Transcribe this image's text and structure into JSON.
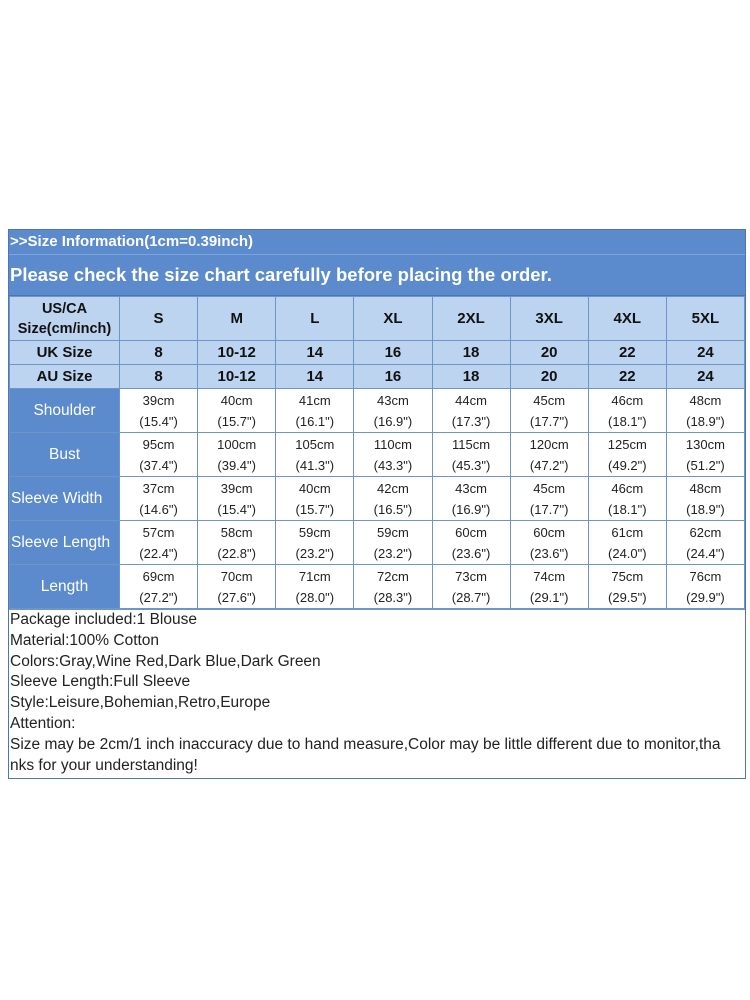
{
  "banner": {
    "line1": ">>Size Information(1cm=0.39inch)",
    "line2": "Please check the size chart carefully before placing the order."
  },
  "colors": {
    "banner_blue": "#5b8bcc",
    "header_light_blue": "#bcd4ef",
    "border_blue": "#6f95c8"
  },
  "table": {
    "us_label_line1": "US/CA",
    "us_label_line2": "Size(cm/inch)",
    "sizes": [
      "S",
      "M",
      "L",
      "XL",
      "2XL",
      "3XL",
      "4XL",
      "5XL"
    ],
    "uk_label": "UK Size",
    "uk_sizes": [
      "8",
      "10-12",
      "14",
      "16",
      "18",
      "20",
      "22",
      "24"
    ],
    "au_label": "AU Size",
    "au_sizes": [
      "8",
      "10-12",
      "14",
      "16",
      "18",
      "20",
      "22",
      "24"
    ],
    "rows": [
      {
        "label": "Shoulder",
        "cm": [
          "39cm",
          "40cm",
          "41cm",
          "43cm",
          "44cm",
          "45cm",
          "46cm",
          "48cm"
        ],
        "inch": [
          "(15.4\")",
          "(15.7\")",
          "(16.1\")",
          "(16.9\")",
          "(17.3\")",
          "(17.7\")",
          "(18.1\")",
          "(18.9\")"
        ]
      },
      {
        "label": "Bust",
        "cm": [
          "95cm",
          "100cm",
          "105cm",
          "110cm",
          "115cm",
          "120cm",
          "125cm",
          "130cm"
        ],
        "inch": [
          "(37.4\")",
          "(39.4\")",
          "(41.3\")",
          "(43.3\")",
          "(45.3\")",
          "(47.2\")",
          "(49.2\")",
          "(51.2\")"
        ]
      },
      {
        "label": "Sleeve Width",
        "cm": [
          "37cm",
          "39cm",
          "40cm",
          "42cm",
          "43cm",
          "45cm",
          "46cm",
          "48cm"
        ],
        "inch": [
          "(14.6\")",
          "(15.4\")",
          "(15.7\")",
          "(16.5\")",
          "(16.9\")",
          "(17.7\")",
          "(18.1\")",
          "(18.9\")"
        ]
      },
      {
        "label": "Sleeve Length",
        "cm": [
          "57cm",
          "58cm",
          "59cm",
          "59cm",
          "60cm",
          "60cm",
          "61cm",
          "62cm"
        ],
        "inch": [
          "(22.4\")",
          "(22.8\")",
          "(23.2\")",
          "(23.2\")",
          "(23.6\")",
          "(23.6\")",
          "(24.0\")",
          "(24.4\")"
        ]
      },
      {
        "label": "Length",
        "cm": [
          "69cm",
          "70cm",
          "71cm",
          "72cm",
          "73cm",
          "74cm",
          "75cm",
          "76cm"
        ],
        "inch": [
          "(27.2\")",
          "(27.6\")",
          "(28.0\")",
          "(28.3\")",
          "(28.7\")",
          "(29.1\")",
          "(29.5\")",
          "(29.9\")"
        ]
      }
    ]
  },
  "notes": {
    "package": "Package included:1 Blouse",
    "material": "Material:100% Cotton",
    "colors": "Colors:Gray,Wine Red,Dark Blue,Dark Green",
    "sleeve": "Sleeve Length:Full Sleeve",
    "style": "Style:Leisure,Bohemian,Retro,Europe",
    "attention": "Attention:",
    "disclaimer_1": "Size may be 2cm/1 inch inaccuracy due to hand measure,Color may be little different due to monitor,tha",
    "disclaimer_2": "nks for your understanding!"
  }
}
